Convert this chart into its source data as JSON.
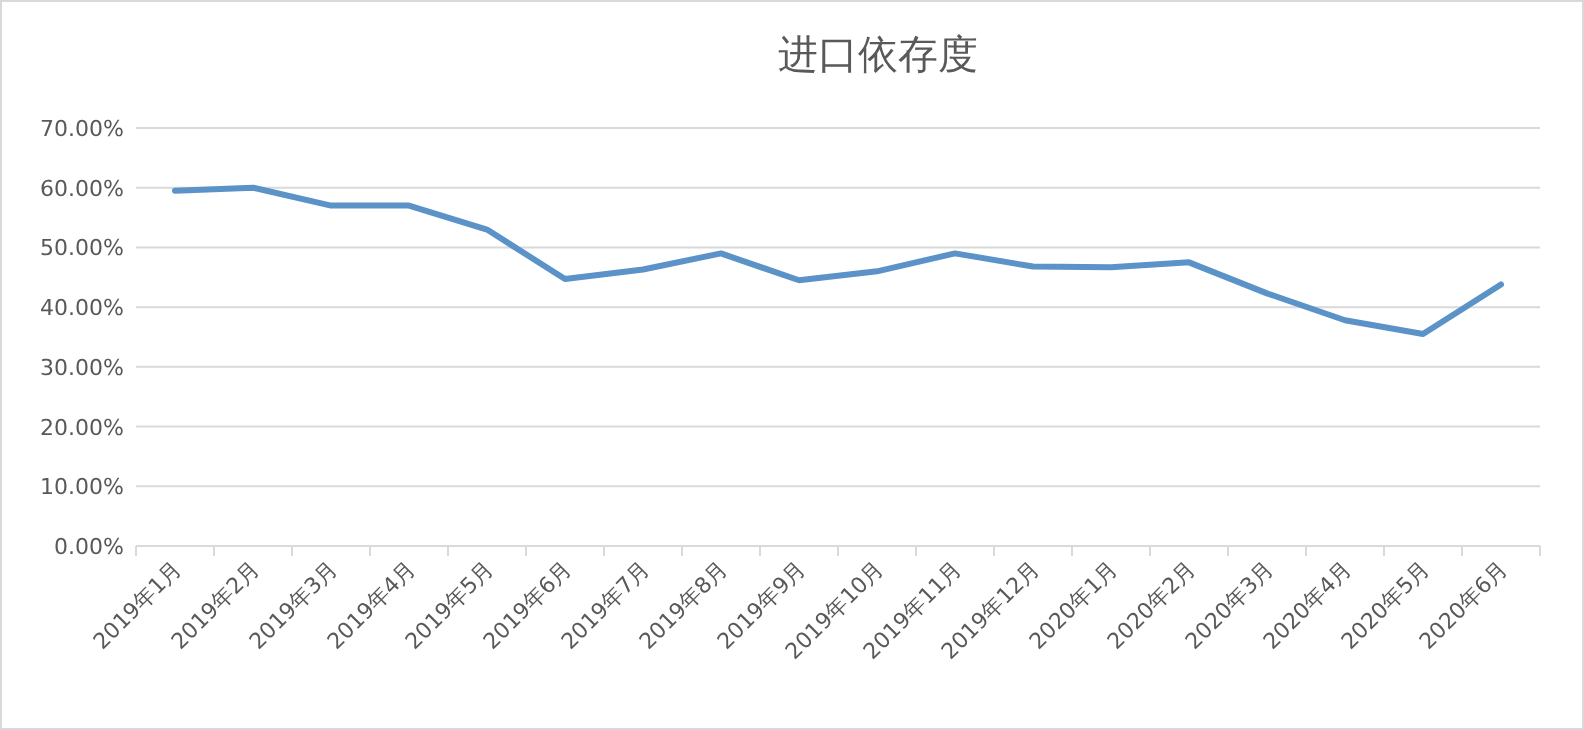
{
  "chart_data": {
    "type": "line",
    "title": "进口依存度",
    "categories": [
      "2019年1月",
      "2019年2月",
      "2019年3月",
      "2019年4月",
      "2019年5月",
      "2019年6月",
      "2019年7月",
      "2019年8月",
      "2019年9月",
      "2019年10月",
      "2019年11月",
      "2019年12月",
      "2020年1月",
      "2020年2月",
      "2020年3月",
      "2020年4月",
      "2020年5月",
      "2020年6月"
    ],
    "series": [
      {
        "color": "#5b92c8",
        "values": [
          59.5,
          60,
          57,
          57,
          53,
          44.7,
          46.3,
          49,
          44.5,
          46,
          49,
          46.8,
          46.7,
          47.5,
          42.3,
          37.8,
          35.5,
          43.8
        ]
      }
    ],
    "ylim": [
      0,
      70
    ],
    "yticks": [
      {
        "value": 0,
        "label": "0.00%"
      },
      {
        "value": 10,
        "label": "10.00%"
      },
      {
        "value": 20,
        "label": "20.00%"
      },
      {
        "value": 30,
        "label": "30.00%"
      },
      {
        "value": 40,
        "label": "40.00%"
      },
      {
        "value": 50,
        "label": "50.00%"
      },
      {
        "value": 60,
        "label": "60.00%"
      },
      {
        "value": 70,
        "label": "70.00%"
      }
    ],
    "grid": "y",
    "marker": "none",
    "line_style": "solid"
  }
}
